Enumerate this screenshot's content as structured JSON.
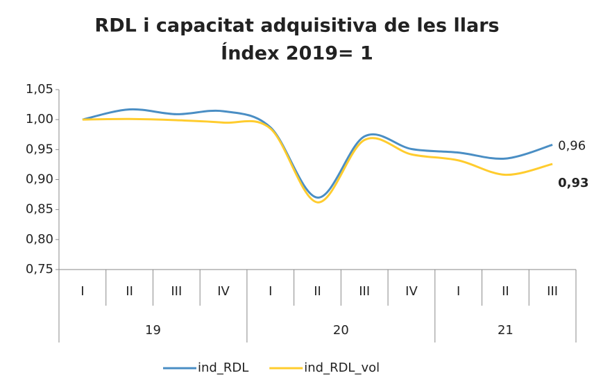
{
  "chart_data": {
    "type": "line",
    "title": "RDL i capacitat adquisitiva de les llars",
    "subtitle": "Índex 2019= 1",
    "groups": [
      {
        "name": "19",
        "categories": [
          "I",
          "II",
          "III",
          "IV"
        ]
      },
      {
        "name": "20",
        "categories": [
          "I",
          "II",
          "III",
          "IV"
        ]
      },
      {
        "name": "21",
        "categories": [
          "I",
          "II",
          "III"
        ]
      }
    ],
    "series": [
      {
        "name": "ind_RDL",
        "color": "#4a8ec4",
        "values": [
          1.0,
          1.017,
          1.009,
          1.014,
          0.987,
          0.87,
          0.972,
          0.951,
          0.945,
          0.935,
          0.958
        ],
        "value_labels": [
          null,
          null,
          null,
          null,
          null,
          null,
          null,
          null,
          null,
          null,
          "0,96"
        ],
        "value_label_bold": false
      },
      {
        "name": "ind_RDL_vol",
        "color": "#ffcc2e",
        "values": [
          1.0,
          1.001,
          0.999,
          0.995,
          0.985,
          0.862,
          0.966,
          0.942,
          0.932,
          0.908,
          0.926
        ],
        "value_labels": [
          null,
          null,
          null,
          null,
          null,
          null,
          null,
          null,
          null,
          null,
          "0,93"
        ],
        "value_label_bold": true
      }
    ],
    "ylim": [
      0.75,
      1.05
    ],
    "yticks": [
      {
        "value": 0.75,
        "label": "0,75"
      },
      {
        "value": 0.8,
        "label": "0,80"
      },
      {
        "value": 0.85,
        "label": "0,85"
      },
      {
        "value": 0.9,
        "label": "0,90"
      },
      {
        "value": 0.95,
        "label": "0,95"
      },
      {
        "value": 1.0,
        "label": "1,00"
      },
      {
        "value": 1.05,
        "label": "1,05"
      }
    ],
    "grid": false,
    "smooth": true,
    "legend": "bottom"
  }
}
